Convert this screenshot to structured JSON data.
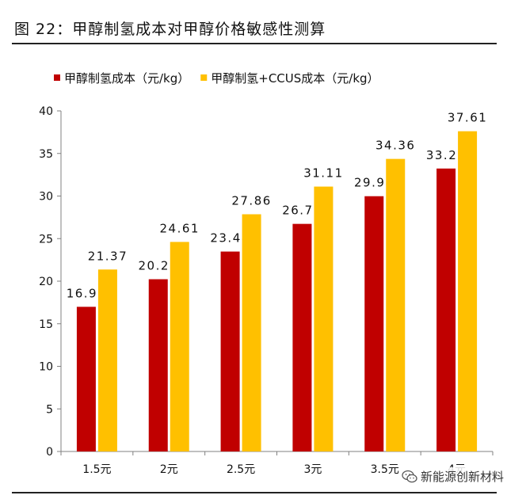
{
  "page": {
    "title": "图 22：甲醇制氢成本对甲醇价格敏感性测算",
    "watermark": "新能源创新材料",
    "watermark_icon": "wechat-icon"
  },
  "chart_data": {
    "type": "bar",
    "categories": [
      "1.5元",
      "2元",
      "2.5元",
      "3元",
      "3.5元",
      "4元"
    ],
    "series": [
      {
        "name": "甲醇制氢成本（元/kg）",
        "color": "#C00000",
        "values": [
          16.99,
          20.23,
          23.48,
          26.73,
          29.98,
          33.23
        ]
      },
      {
        "name": "甲醇制氢+CCUS成本（元/kg）",
        "color": "#FFC000",
        "values": [
          21.37,
          24.61,
          27.86,
          31.11,
          34.36,
          37.61
        ]
      }
    ],
    "ylim": [
      0,
      40
    ],
    "yticks": [
      0,
      5,
      10,
      15,
      20,
      25,
      30,
      35,
      40
    ],
    "ytick_labels": [
      "0",
      "5",
      "10",
      "15",
      "20",
      "25",
      "30",
      "35",
      "40"
    ],
    "xlabel": "",
    "ylabel": "",
    "legend_position": "top-left",
    "grid": false
  }
}
